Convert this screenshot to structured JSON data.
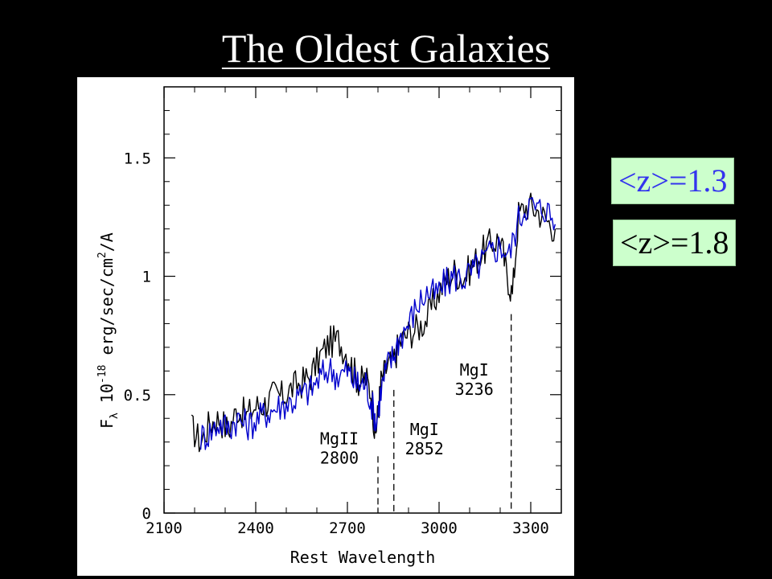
{
  "slide": {
    "title": "The Oldest Galaxies"
  },
  "legend": [
    {
      "label": "<z>=1.3",
      "color": "#3333ee"
    },
    {
      "label": "<z>=1.8",
      "color": "#000000"
    }
  ],
  "chart_data": {
    "type": "line",
    "xlabel": "Rest Wavelength",
    "ylabel_parts": {
      "flux": "F",
      "sub": "λ",
      "coef": "10",
      "exp": "-18",
      "unit": "erg/sec/cm",
      "unit_exp": "2",
      "unit_tail": "/A"
    },
    "xlim": [
      2100,
      3400
    ],
    "ylim": [
      0,
      1.8
    ],
    "x_ticks": [
      "2100",
      "2400",
      "2700",
      "3000",
      "3300"
    ],
    "y_ticks": [
      "0",
      "0.5",
      "1",
      "1.5"
    ],
    "series": [
      {
        "color": "#000000",
        "x": [
          2190,
          2220,
          2250,
          2280,
          2310,
          2340,
          2370,
          2400,
          2430,
          2460,
          2490,
          2520,
          2550,
          2580,
          2610,
          2640,
          2670,
          2700,
          2720,
          2740,
          2760,
          2780,
          2790,
          2800,
          2810,
          2830,
          2850,
          2870,
          2900,
          2930,
          2960,
          2990,
          3020,
          3050,
          3080,
          3110,
          3140,
          3170,
          3200,
          3220,
          3240,
          3260,
          3290,
          3320,
          3350,
          3380
        ],
        "y": [
          0.36,
          0.3,
          0.38,
          0.4,
          0.35,
          0.44,
          0.41,
          0.45,
          0.46,
          0.5,
          0.49,
          0.53,
          0.55,
          0.58,
          0.66,
          0.72,
          0.73,
          0.67,
          0.6,
          0.55,
          0.57,
          0.5,
          0.32,
          0.42,
          0.55,
          0.62,
          0.64,
          0.72,
          0.76,
          0.78,
          0.82,
          0.91,
          0.98,
          1.02,
          0.99,
          1.05,
          1.1,
          1.14,
          1.16,
          1.02,
          0.92,
          1.26,
          1.3,
          1.28,
          1.24,
          1.2
        ]
      },
      {
        "color": "#0000cc",
        "x": [
          2220,
          2250,
          2280,
          2310,
          2340,
          2370,
          2400,
          2430,
          2460,
          2490,
          2520,
          2550,
          2580,
          2610,
          2640,
          2670,
          2700,
          2720,
          2740,
          2760,
          2780,
          2795,
          2810,
          2830,
          2850,
          2870,
          2900,
          2930,
          2960,
          2990,
          3020,
          3050,
          3080,
          3110,
          3140,
          3170,
          3200,
          3230,
          3260,
          3290,
          3320,
          3350,
          3380
        ],
        "y": [
          0.32,
          0.34,
          0.38,
          0.36,
          0.4,
          0.37,
          0.39,
          0.42,
          0.44,
          0.46,
          0.47,
          0.5,
          0.52,
          0.57,
          0.61,
          0.58,
          0.6,
          0.56,
          0.54,
          0.55,
          0.46,
          0.38,
          0.52,
          0.62,
          0.66,
          0.74,
          0.8,
          0.88,
          0.93,
          0.92,
          0.97,
          1.0,
          0.99,
          1.02,
          1.06,
          1.1,
          1.13,
          1.09,
          1.24,
          1.31,
          1.28,
          1.29,
          1.22
        ]
      }
    ],
    "annotations": [
      {
        "lines": [
          "MgII",
          "2800"
        ],
        "x": 2800,
        "line_top_y": 0.24
      },
      {
        "lines": [
          "MgI",
          "2852"
        ],
        "x": 2852,
        "line_top_y": 0.52
      },
      {
        "lines": [
          "MgI",
          "3236"
        ],
        "x": 3236,
        "line_top_y": 0.84
      }
    ],
    "grid": false
  }
}
